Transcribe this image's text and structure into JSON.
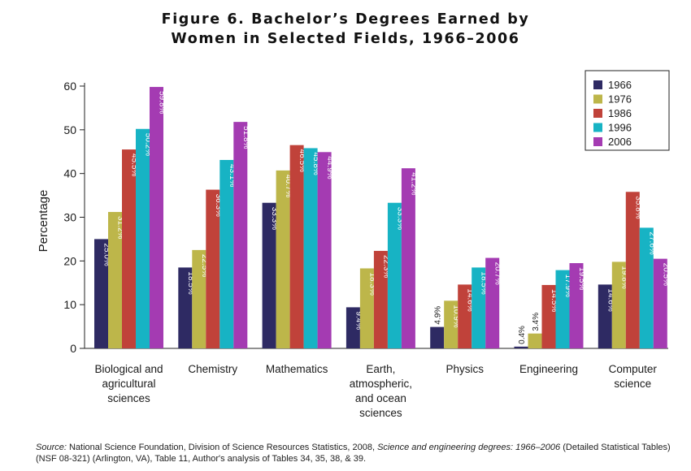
{
  "title_line1": "Figure 6. Bachelor’s Degrees Earned by",
  "title_line2": "Women in Selected Fields, 1966–2006",
  "source": {
    "label": "Source:",
    "text_before": "National Science Foundation, Division of Science Resources Statistics, 2008,",
    "italic_title": "Science and engineering degrees: 1966–2006",
    "text_after": "(Detailed Statistical Tables) (NSF 08-321) (Arlington, VA), Table 11, Author's analysis of Tables 34, 35, 38, & 39."
  },
  "chart_data": {
    "type": "bar",
    "title": "Figure 6. Bachelor’s Degrees Earned by Women in Selected Fields, 1966–2006",
    "xlabel": "",
    "ylabel": "Percentage",
    "ylim": [
      0,
      60
    ],
    "yticks": [
      0,
      10,
      20,
      30,
      40,
      50,
      60
    ],
    "grid": false,
    "legend_position": "top-right",
    "categories": [
      [
        "Biological and",
        "agricultural",
        "sciences"
      ],
      [
        "Chemistry"
      ],
      [
        "Mathematics"
      ],
      [
        "Earth,",
        "atmospheric,",
        "and ocean",
        "sciences"
      ],
      [
        "Physics"
      ],
      [
        "Engineering"
      ],
      [
        "Computer",
        "science"
      ]
    ],
    "series": [
      {
        "name": "1966",
        "color": "#2e2a63",
        "values": [
          25.0,
          18.5,
          33.3,
          9.4,
          4.9,
          0.4,
          14.6
        ],
        "labels": [
          "25.0%",
          "18.5%",
          "33.3%",
          "9.4%",
          "4.9%",
          "0.4%",
          "14.6%"
        ]
      },
      {
        "name": "1976",
        "color": "#bdb64a",
        "values": [
          31.2,
          22.5,
          40.7,
          18.3,
          10.9,
          3.4,
          19.8
        ],
        "labels": [
          "31.2%",
          "22.5%",
          "40.7%",
          "18.3%",
          "10.9%",
          "3.4%",
          "19.8%"
        ]
      },
      {
        "name": "1986",
        "color": "#c0423a",
        "values": [
          45.5,
          36.3,
          46.5,
          22.3,
          14.6,
          14.5,
          35.8
        ],
        "labels": [
          "45.5%",
          "36.3%",
          "46.5%",
          "22.3%",
          "14.6%",
          "14.5%",
          "35.8%"
        ]
      },
      {
        "name": "1996",
        "color": "#17b3c4",
        "values": [
          50.2,
          43.1,
          45.8,
          33.3,
          18.5,
          17.9,
          27.6
        ],
        "labels": [
          "50.2%",
          "43.1%",
          "45.8%",
          "33.3%",
          "18.5%",
          "17.9%",
          "27.6%"
        ]
      },
      {
        "name": "2006",
        "color": "#a43bb2",
        "values": [
          59.8,
          51.8,
          44.9,
          41.2,
          20.7,
          19.5,
          20.5
        ],
        "labels": [
          "59.8%",
          "51.8%",
          "44.9%",
          "41.2%",
          "20.7%",
          "19.5%",
          "20.5%"
        ]
      }
    ]
  }
}
